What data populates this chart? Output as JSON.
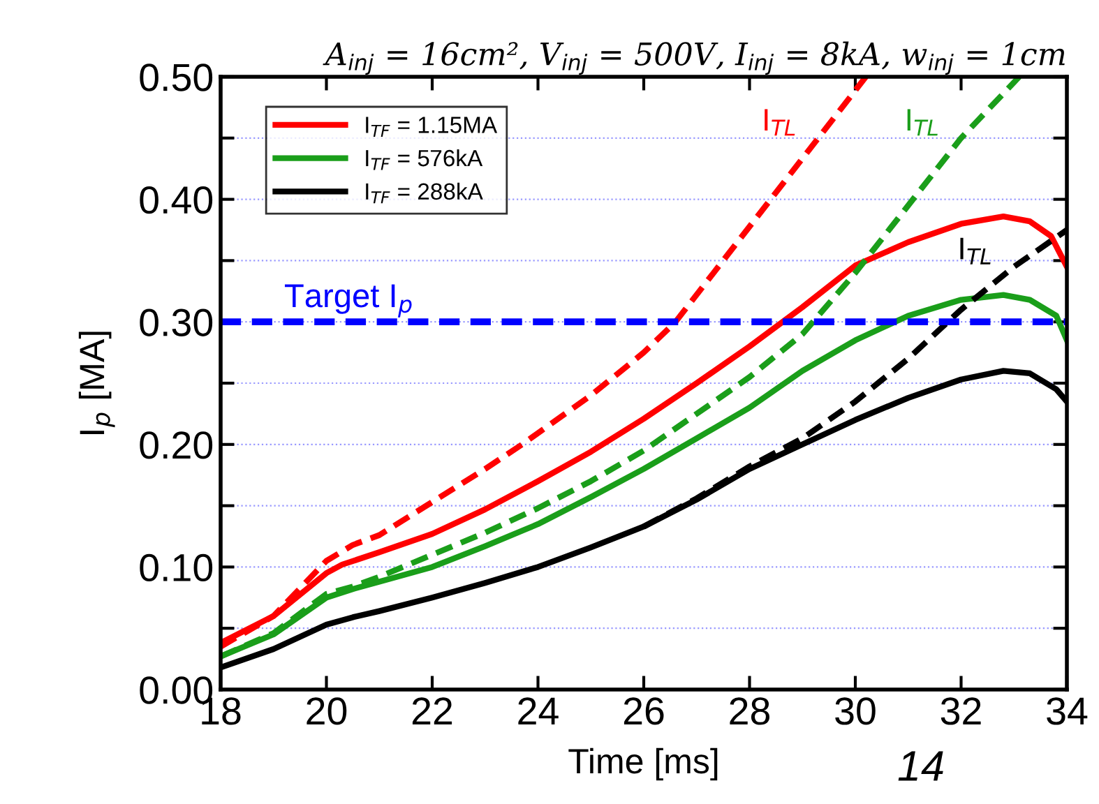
{
  "chart_data": {
    "type": "line",
    "title": "A$_{inj}$ = 16cm², V$_{inj}$ = 500V, I$_{inj}$ = 8kA, w$_{inj}$ = 1cm",
    "xlabel": "Time [ms]",
    "ylabel": "I$_{p}$ [MA]",
    "series": [
      {
        "name": "I$_{TF}$ = 1.15MA",
        "color": "#ff0000",
        "line_style": "solid",
        "x": [
          18,
          19,
          20,
          20.3,
          21,
          22,
          23,
          24,
          25,
          26,
          27,
          28,
          29,
          30,
          31,
          32,
          32.8,
          33.3,
          33.7,
          34
        ],
        "values": [
          0.038,
          0.06,
          0.095,
          0.102,
          0.112,
          0.127,
          0.147,
          0.17,
          0.194,
          0.221,
          0.25,
          0.28,
          0.312,
          0.346,
          0.365,
          0.38,
          0.386,
          0.382,
          0.37,
          0.345
        ]
      },
      {
        "name": "I$_{TF}$ = 576kA",
        "color": "#1a9e1a",
        "line_style": "solid",
        "x": [
          18,
          19,
          20,
          20.5,
          21,
          22,
          23,
          24,
          25,
          26,
          27,
          28,
          29,
          30,
          31,
          32,
          32.8,
          33.3,
          33.8,
          34
        ],
        "values": [
          0.027,
          0.045,
          0.075,
          0.082,
          0.088,
          0.1,
          0.117,
          0.135,
          0.157,
          0.18,
          0.205,
          0.23,
          0.26,
          0.285,
          0.305,
          0.318,
          0.322,
          0.318,
          0.305,
          0.285
        ]
      },
      {
        "name": "I$_{TF}$ = 288kA",
        "color": "#000000",
        "line_style": "solid",
        "x": [
          18,
          19,
          20,
          20.5,
          21,
          22,
          23,
          24,
          25,
          26,
          27,
          28,
          29,
          30,
          31,
          32,
          32.8,
          33.3,
          33.8,
          34
        ],
        "values": [
          0.018,
          0.033,
          0.053,
          0.059,
          0.064,
          0.075,
          0.087,
          0.1,
          0.116,
          0.133,
          0.155,
          0.18,
          0.2,
          0.22,
          0.238,
          0.253,
          0.26,
          0.258,
          0.245,
          0.235
        ]
      },
      {
        "name": "I$_{TL}$",
        "color": "#ff0000",
        "line_style": "dashed",
        "x": [
          18,
          19,
          20,
          20.5,
          21,
          22,
          23,
          23.7,
          25,
          26,
          26.6,
          27.5,
          28.4,
          29.3,
          30.2
        ],
        "values": [
          0.035,
          0.06,
          0.105,
          0.118,
          0.126,
          0.153,
          0.18,
          0.2,
          0.24,
          0.275,
          0.3,
          0.35,
          0.4,
          0.45,
          0.5
        ]
      },
      {
        "name": "I$_{TL}$",
        "color": "#1a9e1a",
        "line_style": "dashed",
        "x": [
          18,
          19,
          20,
          20.5,
          21,
          22,
          23,
          24,
          25,
          26,
          27,
          28,
          29,
          30,
          31,
          32,
          33.1
        ],
        "values": [
          0.027,
          0.046,
          0.078,
          0.084,
          0.092,
          0.11,
          0.128,
          0.148,
          0.17,
          0.195,
          0.225,
          0.255,
          0.29,
          0.34,
          0.395,
          0.45,
          0.5
        ]
      },
      {
        "name": "I$_{TL}$",
        "color": "#000000",
        "line_style": "dashed",
        "x": [
          26,
          27,
          28,
          29,
          30,
          31,
          32,
          33,
          34
        ],
        "values": [
          0.133,
          0.156,
          0.182,
          0.205,
          0.235,
          0.27,
          0.31,
          0.345,
          0.375
        ]
      }
    ],
    "xlim": [
      18,
      34
    ],
    "xticks": [
      18,
      20,
      22,
      24,
      26,
      28,
      30,
      32,
      34
    ],
    "ylim": [
      0,
      0.5
    ],
    "yticks": [
      {
        "value": 0,
        "label": "0.00"
      },
      {
        "value": 0.05,
        "label": null
      },
      {
        "value": 0.1,
        "label": "0.10"
      },
      {
        "value": 0.15,
        "label": null
      },
      {
        "value": 0.2,
        "label": "0.20"
      },
      {
        "value": 0.25,
        "label": null
      },
      {
        "value": 0.3,
        "label": "0.30"
      },
      {
        "value": 0.35,
        "label": null
      },
      {
        "value": 0.4,
        "label": "0.40"
      },
      {
        "value": 0.45,
        "label": null
      },
      {
        "value": 0.5,
        "label": "0.50"
      }
    ],
    "ref_lines": [
      {
        "axis": "y",
        "value": 0.3,
        "label": "Target I$_{p}$",
        "color": "#0000ff",
        "line_style": "dashed"
      }
    ],
    "annotations": [
      "14"
    ],
    "grid": "y",
    "legend": "top left"
  }
}
